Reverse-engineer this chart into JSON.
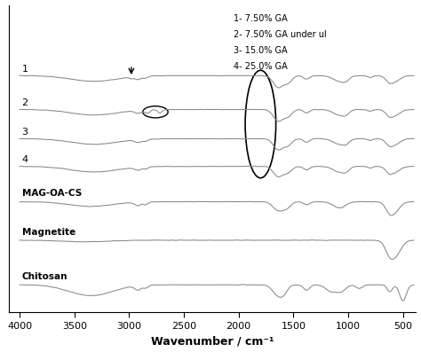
{
  "xlabel": "Wavenumber / cm⁻¹",
  "xticks": [
    4000,
    3500,
    3000,
    2500,
    2000,
    1500,
    1000,
    500
  ],
  "legend_lines": [
    "1- 7.50% GA",
    "2- 7.50% GA under ul",
    "3- 15.0% GA",
    "4- 25.0% GA"
  ],
  "spectrum_labels": [
    "1",
    "2",
    "3",
    "4",
    "MAG-OA-CS",
    "Magnetite",
    "Chitosan"
  ],
  "background_color": "#ffffff",
  "line_color": "#888888",
  "offsets": [
    7.2,
    6.1,
    5.15,
    4.25,
    3.1,
    1.85,
    0.4
  ],
  "ylim": [
    -0.5,
    9.5
  ]
}
